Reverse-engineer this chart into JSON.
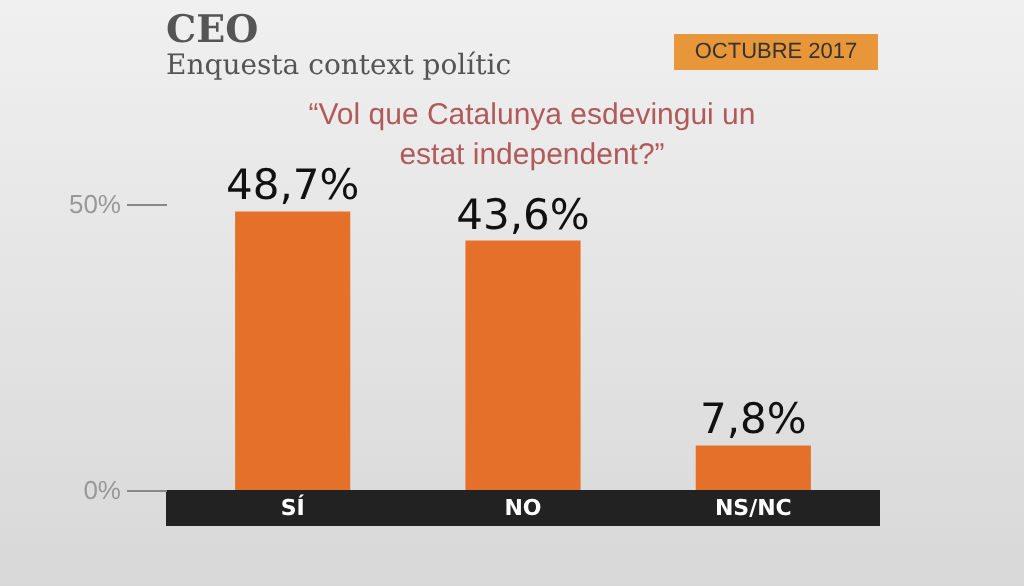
{
  "chart_data": {
    "type": "bar",
    "title": "CEO",
    "subtitle": "Enquesta context polític",
    "annotations": [
      "OCTUBRE 2017",
      "“Vol que Catalunya esdevingui un estat independent?”"
    ],
    "categories": [
      "SÍ",
      "NO",
      "NS/NC"
    ],
    "values": [
      48.7,
      43.6,
      7.8
    ],
    "value_labels": [
      "48,7%",
      "43,6%",
      "7,8%"
    ],
    "color": "#e5702a",
    "ylim": [
      0,
      50
    ],
    "yticks": [
      {
        "value": 0,
        "label": "0%"
      },
      {
        "value": 50,
        "label": "50%"
      }
    ],
    "grid": false
  }
}
